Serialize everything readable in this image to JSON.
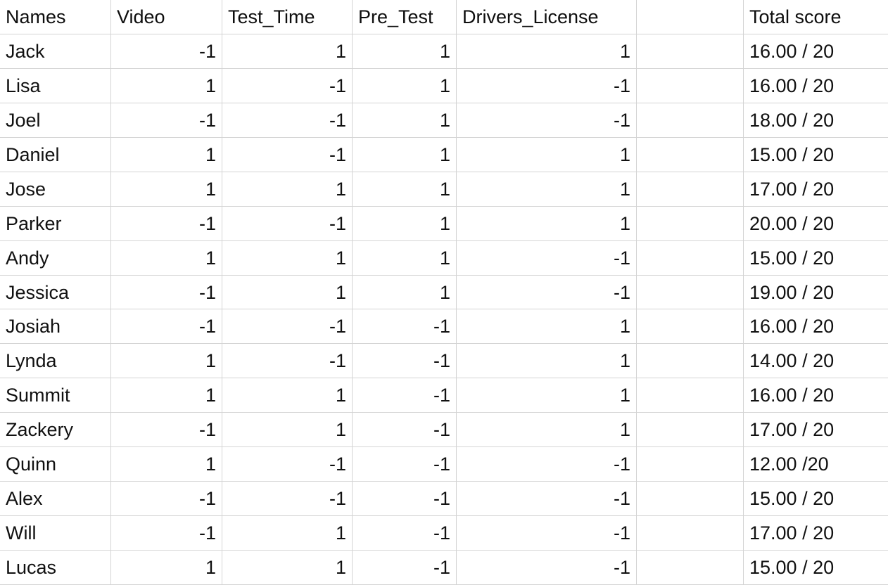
{
  "columns": {
    "names": "Names",
    "video": "Video",
    "test_time": "Test_Time",
    "pre_test": "Pre_Test",
    "drivers_license": "Drivers_License",
    "blank": "",
    "total_score": "Total score"
  },
  "rows": [
    {
      "name": "Jack",
      "video": "-1",
      "test_time": "1",
      "pre_test": "1",
      "drivers_license": "1",
      "total": "16.00 / 20"
    },
    {
      "name": "Lisa",
      "video": "1",
      "test_time": "-1",
      "pre_test": "1",
      "drivers_license": "-1",
      "total": "16.00 / 20"
    },
    {
      "name": "Joel",
      "video": "-1",
      "test_time": "-1",
      "pre_test": "1",
      "drivers_license": "-1",
      "total": "18.00 / 20"
    },
    {
      "name": "Daniel",
      "video": "1",
      "test_time": "-1",
      "pre_test": "1",
      "drivers_license": "1",
      "total": "15.00 / 20"
    },
    {
      "name": "Jose",
      "video": "1",
      "test_time": "1",
      "pre_test": "1",
      "drivers_license": "1",
      "total": "17.00 / 20"
    },
    {
      "name": "Parker",
      "video": "-1",
      "test_time": "-1",
      "pre_test": "1",
      "drivers_license": "1",
      "total": "20.00 / 20"
    },
    {
      "name": "Andy",
      "video": "1",
      "test_time": "1",
      "pre_test": "1",
      "drivers_license": "-1",
      "total": "15.00 / 20"
    },
    {
      "name": "Jessica",
      "video": "-1",
      "test_time": "1",
      "pre_test": "1",
      "drivers_license": "-1",
      "total": "19.00 / 20"
    },
    {
      "name": "Josiah",
      "video": "-1",
      "test_time": "-1",
      "pre_test": "-1",
      "drivers_license": "1",
      "total": "16.00 / 20"
    },
    {
      "name": "Lynda",
      "video": "1",
      "test_time": "-1",
      "pre_test": "-1",
      "drivers_license": "1",
      "total": "14.00 / 20"
    },
    {
      "name": "Summit",
      "video": "1",
      "test_time": "1",
      "pre_test": "-1",
      "drivers_license": "1",
      "total": "16.00 / 20"
    },
    {
      "name": "Zackery",
      "video": "-1",
      "test_time": "1",
      "pre_test": "-1",
      "drivers_license": "1",
      "total": "17.00 / 20"
    },
    {
      "name": "Quinn",
      "video": "1",
      "test_time": "-1",
      "pre_test": "-1",
      "drivers_license": "-1",
      "total": "12.00 /20"
    },
    {
      "name": "Alex",
      "video": "-1",
      "test_time": "-1",
      "pre_test": "-1",
      "drivers_license": "-1",
      "total": "15.00 / 20"
    },
    {
      "name": "Will",
      "video": "-1",
      "test_time": "1",
      "pre_test": "-1",
      "drivers_license": "-1",
      "total": "17.00 / 20"
    },
    {
      "name": "Lucas",
      "video": "1",
      "test_time": "1",
      "pre_test": "-1",
      "drivers_license": "-1",
      "total": "15.00 / 20"
    }
  ]
}
